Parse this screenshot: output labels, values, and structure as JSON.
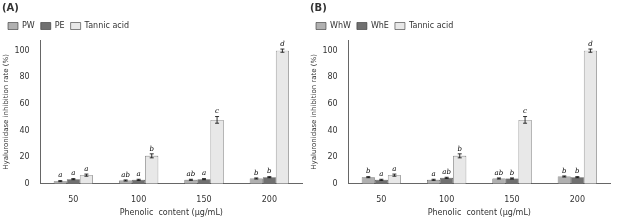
{
  "chart_data": [
    {
      "type": "bar",
      "title": "(A)",
      "x_label": "Phenolic  content (μg/mL)",
      "y_label": "Hyaluronidase inhibition rate (%)",
      "categories": [
        "50",
        "100",
        "150",
        "200"
      ],
      "series": [
        {
          "name": "PW",
          "color": "#b0b0b0",
          "values": [
            2.0,
            2.5,
            3.0,
            4.0
          ],
          "errors": [
            0.4,
            0.4,
            0.4,
            0.4
          ],
          "annotations": [
            "a",
            "ab",
            "ab",
            "b"
          ]
        },
        {
          "name": "PE",
          "color": "#707070",
          "values": [
            3.5,
            3.0,
            3.5,
            5.0
          ],
          "errors": [
            0.4,
            0.4,
            0.4,
            0.4
          ],
          "annotations": [
            "a",
            "a",
            "a",
            "b"
          ]
        },
        {
          "name": "Tannic acid",
          "color": "#e8e8e8",
          "values": [
            6.5,
            21.0,
            48.0,
            100.0
          ],
          "errors": [
            0.8,
            1.5,
            2.5,
            1.2
          ],
          "annotations": [
            "a",
            "b",
            "c",
            "d"
          ]
        }
      ],
      "ylim": [
        0,
        108
      ],
      "yticks": [
        0,
        20,
        40,
        60,
        80,
        100
      ],
      "grid": false,
      "legend": "upper left"
    },
    {
      "type": "bar",
      "title": "(B)",
      "x_label": "Phenolic  content (μg/mL)",
      "y_label": "Hyaluronidase inhibition rate (%)",
      "categories": [
        "50",
        "100",
        "150",
        "200"
      ],
      "series": [
        {
          "name": "WhW",
          "color": "#b0b0b0",
          "values": [
            5.0,
            3.0,
            4.0,
            5.5
          ],
          "errors": [
            0.4,
            0.4,
            0.4,
            0.4
          ],
          "annotations": [
            "b",
            "a",
            "ab",
            "b"
          ]
        },
        {
          "name": "WhE",
          "color": "#707070",
          "values": [
            3.0,
            4.5,
            4.0,
            5.0
          ],
          "errors": [
            0.4,
            0.4,
            0.4,
            0.4
          ],
          "annotations": [
            "a",
            "ab",
            "b",
            "b"
          ]
        },
        {
          "name": "Tannic acid",
          "color": "#e8e8e8",
          "values": [
            6.5,
            21.0,
            48.0,
            100.0
          ],
          "errors": [
            0.8,
            1.5,
            2.5,
            1.2
          ],
          "annotations": [
            "a",
            "b",
            "c",
            "d"
          ]
        }
      ],
      "ylim": [
        0,
        108
      ],
      "yticks": [
        0,
        20,
        40,
        60,
        80,
        100
      ],
      "grid": false,
      "legend": "upper left"
    }
  ]
}
